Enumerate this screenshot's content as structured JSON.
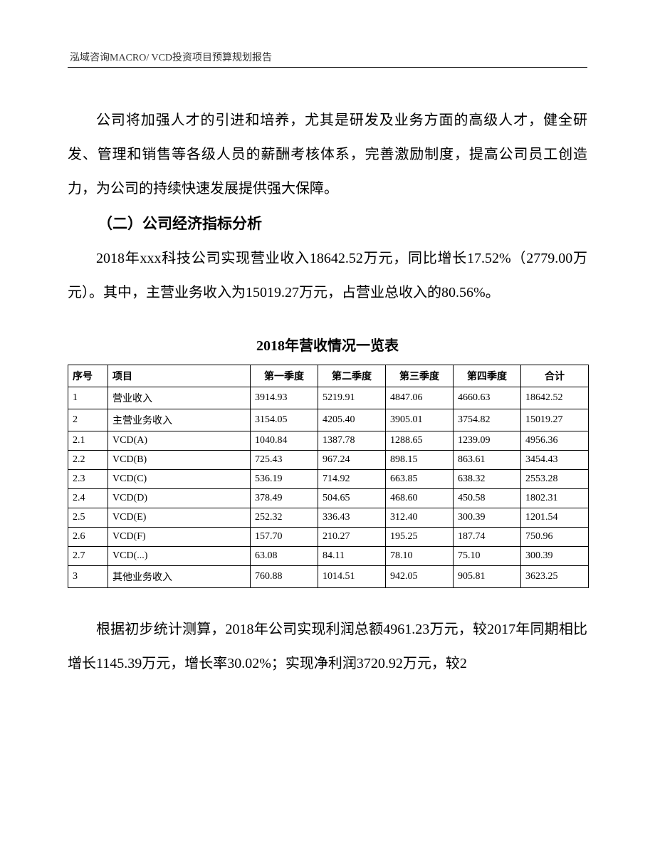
{
  "header": "泓域咨询MACRO/   VCD投资项目预算规划报告",
  "para1": "公司将加强人才的引进和培养，尤其是研发及业务方面的高级人才，健全研发、管理和销售等各级人员的薪酬考核体系，完善激励制度，提高公司员工创造力，为公司的持续快速发展提供强大保障。",
  "sectionHeading": "（二）公司经济指标分析",
  "para2": "2018年xxx科技公司实现营业收入18642.52万元，同比增长17.52%（2779.00万元）。其中，主营业务收入为15019.27万元，占营业总收入的80.56%。",
  "tableTitle": "2018年营收情况一览表",
  "table": {
    "columns": [
      "序号",
      "项目",
      "第一季度",
      "第二季度",
      "第三季度",
      "第四季度",
      "合计"
    ],
    "rows": [
      [
        "1",
        "营业收入",
        "3914.93",
        "5219.91",
        "4847.06",
        "4660.63",
        "18642.52"
      ],
      [
        "2",
        "主营业务收入",
        "3154.05",
        "4205.40",
        "3905.01",
        "3754.82",
        "15019.27"
      ],
      [
        "2.1",
        "VCD(A)",
        "1040.84",
        "1387.78",
        "1288.65",
        "1239.09",
        "4956.36"
      ],
      [
        "2.2",
        "VCD(B)",
        "725.43",
        "967.24",
        "898.15",
        "863.61",
        "3454.43"
      ],
      [
        "2.3",
        "VCD(C)",
        "536.19",
        "714.92",
        "663.85",
        "638.32",
        "2553.28"
      ],
      [
        "2.4",
        "VCD(D)",
        "378.49",
        "504.65",
        "468.60",
        "450.58",
        "1802.31"
      ],
      [
        "2.5",
        "VCD(E)",
        "252.32",
        "336.43",
        "312.40",
        "300.39",
        "1201.54"
      ],
      [
        "2.6",
        "VCD(F)",
        "157.70",
        "210.27",
        "195.25",
        "187.74",
        "750.96"
      ],
      [
        "2.7",
        "VCD(...)",
        "63.08",
        "84.11",
        "78.10",
        "75.10",
        "300.39"
      ],
      [
        "3",
        "其他业务收入",
        "760.88",
        "1014.51",
        "942.05",
        "905.81",
        "3623.25"
      ]
    ]
  },
  "para3": "根据初步统计测算，2018年公司实现利润总额4961.23万元，较2017年同期相比增长1145.39万元，增长率30.02%；实现净利润3720.92万元，较2"
}
